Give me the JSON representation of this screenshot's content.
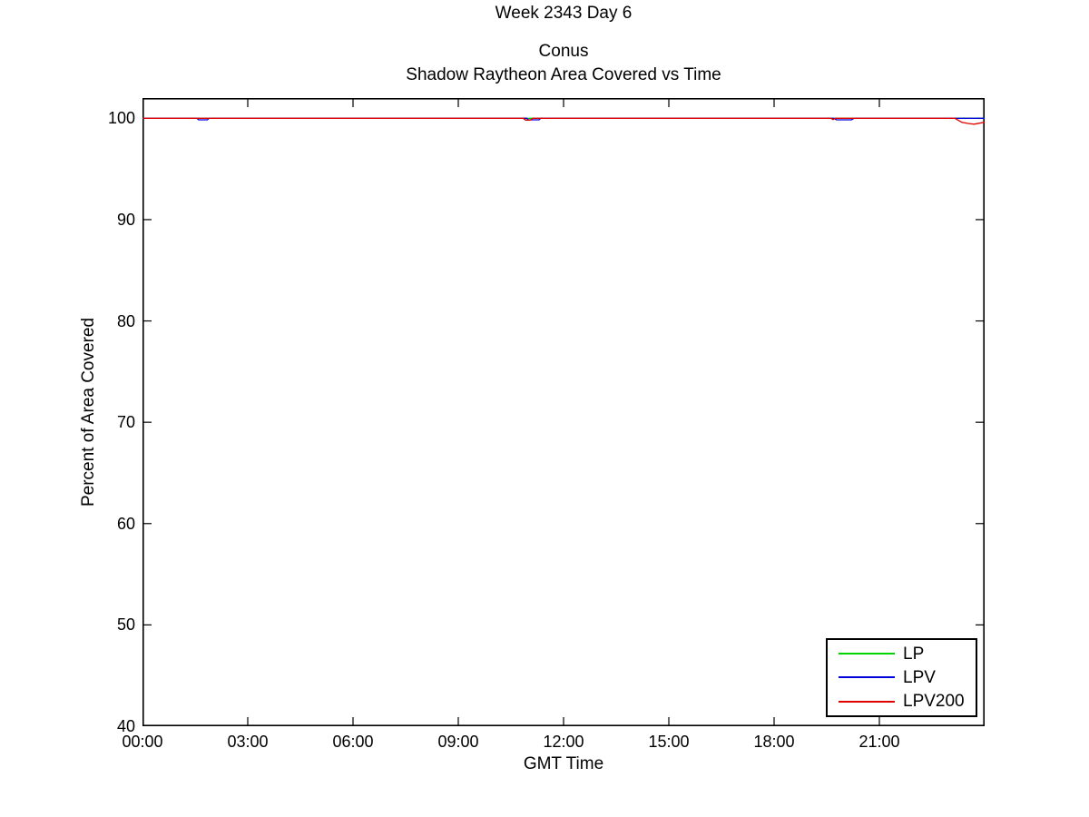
{
  "figure": {
    "suptitle": "Week 2343 Day 6"
  },
  "chart_data": {
    "type": "line",
    "title_lines": [
      "Conus",
      "Shadow Raytheon Area Covered vs Time"
    ],
    "xlabel": "GMT Time",
    "ylabel": "Percent of Area Covered",
    "x_unit": "GMT hours",
    "xlim_hours": [
      0,
      24
    ],
    "ylim": [
      40,
      102
    ],
    "grid": false,
    "legend_position": "lower-right",
    "background_color": "#ffffff",
    "axis_color": "#000000",
    "x_ticks": [
      {
        "hour": 0,
        "label": "00:00"
      },
      {
        "hour": 3,
        "label": "03:00"
      },
      {
        "hour": 6,
        "label": "06:00"
      },
      {
        "hour": 9,
        "label": "09:00"
      },
      {
        "hour": 12,
        "label": "12:00"
      },
      {
        "hour": 15,
        "label": "15:00"
      },
      {
        "hour": 18,
        "label": "18:00"
      },
      {
        "hour": 21,
        "label": "21:00"
      }
    ],
    "y_ticks": [
      {
        "value": 40,
        "label": "40"
      },
      {
        "value": 50,
        "label": "50"
      },
      {
        "value": 60,
        "label": "60"
      },
      {
        "value": 70,
        "label": "70"
      },
      {
        "value": 80,
        "label": "80"
      },
      {
        "value": 90,
        "label": "90"
      },
      {
        "value": 100,
        "label": "100"
      }
    ],
    "series": [
      {
        "name": "LP",
        "color": "#00d300",
        "points": [
          [
            0,
            100
          ],
          [
            24,
            100
          ]
        ]
      },
      {
        "name": "LPV",
        "color": "#0000d9",
        "points": [
          [
            0,
            100
          ],
          [
            1.55,
            100
          ],
          [
            1.6,
            99.85
          ],
          [
            1.85,
            99.85
          ],
          [
            1.9,
            100
          ],
          [
            10.95,
            100
          ],
          [
            11.0,
            99.85
          ],
          [
            11.3,
            99.85
          ],
          [
            11.35,
            100
          ],
          [
            19.7,
            100
          ],
          [
            19.78,
            99.85
          ],
          [
            20.2,
            99.85
          ],
          [
            20.28,
            100
          ],
          [
            24,
            100
          ]
        ]
      },
      {
        "name": "LPV200",
        "color": "#e10000",
        "points": [
          [
            0,
            100
          ],
          [
            10.85,
            100
          ],
          [
            10.92,
            99.82
          ],
          [
            11.05,
            99.82
          ],
          [
            11.12,
            100
          ],
          [
            19.62,
            100
          ],
          [
            19.68,
            99.88
          ],
          [
            19.74,
            100
          ],
          [
            23.15,
            100
          ],
          [
            23.35,
            99.6
          ],
          [
            23.55,
            99.48
          ],
          [
            23.7,
            99.42
          ],
          [
            23.85,
            99.52
          ],
          [
            24,
            99.62
          ]
        ]
      }
    ]
  }
}
